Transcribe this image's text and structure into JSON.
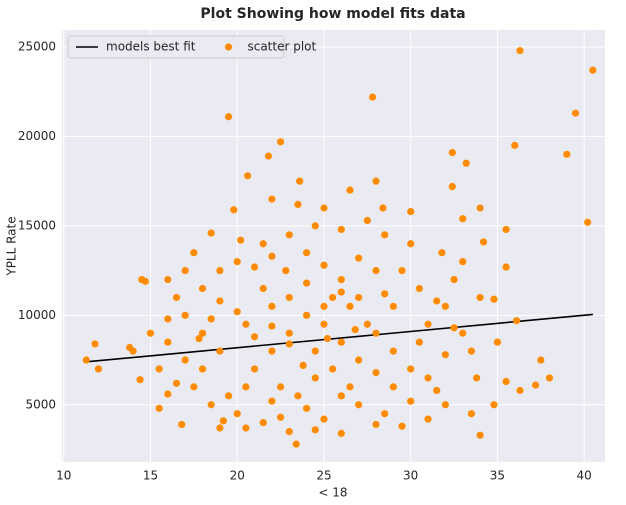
{
  "chart_data": {
    "type": "scatter",
    "title": "Plot Showing how model fits data",
    "x_label": "< 18",
    "y_label": "YPLL Rate",
    "xlim": [
      9.9,
      41.2
    ],
    "ylim": [
      1800,
      25950
    ],
    "xticks": [
      10,
      15,
      20,
      25,
      30,
      35,
      40
    ],
    "yticks": [
      5000,
      10000,
      15000,
      20000,
      25000
    ],
    "grid": true,
    "legend": "upper left",
    "series": [
      {
        "name": "models best fit",
        "type": "line",
        "color": "#000000",
        "x": [
          11.3,
          40.5
        ],
        "values": [
          7400,
          10050
        ]
      },
      {
        "name": "scatter plot",
        "type": "scatter",
        "color": "#ff8c00",
        "x": [
          36.3,
          40.5,
          27.8,
          19.5,
          39.5,
          36,
          39,
          32.4,
          22.5,
          21.8,
          33.2,
          20.6,
          32.4,
          23.6,
          34,
          33,
          40.2,
          30,
          28.4,
          19.8,
          22,
          35.5,
          34.2,
          35.5,
          34.8,
          36.1,
          37.5,
          38,
          37.2,
          36.3,
          35.5,
          34.8,
          34,
          33.5,
          23.4,
          11.3,
          11.8,
          12,
          13.8,
          14.4,
          14.5,
          14.7,
          16.8,
          19,
          15.5,
          16,
          21,
          22,
          23,
          24,
          25,
          26,
          27,
          22.5,
          23.5,
          24.5,
          25.5,
          26.5,
          20.5,
          21.5,
          22.8,
          24,
          25,
          26,
          27,
          28,
          29,
          30,
          31,
          32,
          19,
          18,
          17,
          16,
          15.5,
          17.5,
          18.5,
          20,
          21.5,
          23,
          25,
          27,
          28.5,
          30,
          31.5,
          29,
          30.5,
          31,
          32,
          33,
          33.5,
          32.5,
          31.8,
          30,
          28.5,
          27.5,
          26,
          24.5,
          23,
          21.5,
          20,
          19,
          18,
          16.5,
          17,
          16,
          15,
          14,
          20.5,
          19.5,
          18,
          17,
          16.5,
          22,
          23,
          24.5,
          25.5,
          26.5,
          27.5,
          28,
          29.5,
          22,
          24,
          26,
          28,
          29,
          21,
          23.8,
          25.2,
          26.8,
          20,
          19,
          18.5,
          17.8,
          33,
          34,
          35,
          33.8,
          32,
          31,
          29.5,
          28,
          26,
          24.5,
          22.5,
          20.5,
          19.2,
          21,
          22,
          23.5,
          25,
          27,
          28.5,
          30.5,
          31.5,
          32.5,
          16,
          17.5,
          18.5,
          20.2,
          26.5,
          28,
          24,
          25,
          23,
          22,
          26
        ],
        "values": [
          24800,
          23700,
          22200,
          21100,
          21300,
          19500,
          19000,
          19100,
          19700,
          18900,
          18500,
          17800,
          17200,
          17500,
          16000,
          15400,
          15200,
          15800,
          16000,
          15900,
          16500,
          14800,
          14100,
          12700,
          10900,
          9700,
          7500,
          6500,
          6100,
          5800,
          6300,
          5000,
          3300,
          4500,
          2800,
          7500,
          8400,
          7000,
          8200,
          6400,
          12000,
          11900,
          3900,
          3700,
          4800,
          5600,
          7000,
          8000,
          9000,
          10000,
          9500,
          8500,
          7500,
          6000,
          5500,
          6500,
          11000,
          10500,
          9500,
          11500,
          12500,
          13500,
          12800,
          12000,
          11000,
          9000,
          8000,
          7000,
          6500,
          7800,
          8000,
          9000,
          10000,
          8500,
          7000,
          6000,
          5000,
          4500,
          4000,
          3500,
          4200,
          5000,
          4500,
          5200,
          5800,
          10500,
          11500,
          9500,
          10500,
          9000,
          8000,
          12000,
          13500,
          14000,
          14500,
          15300,
          14800,
          15000,
          14500,
          14000,
          13000,
          12500,
          11500,
          11000,
          12500,
          9800,
          9000,
          8000,
          6000,
          5500,
          7000,
          7500,
          6200,
          10500,
          11000,
          8000,
          7000,
          6000,
          9500,
          12500,
          12500,
          5200,
          4800,
          5500,
          6800,
          6000,
          8800,
          7200,
          8700,
          9200,
          10200,
          10800,
          9800,
          8700,
          13000,
          11000,
          8500,
          6500,
          5000,
          4200,
          3800,
          3900,
          3400,
          3600,
          4300,
          3700,
          4100,
          12700,
          13300,
          16200,
          16000,
          13200,
          11200,
          8500,
          10800,
          9300,
          12000,
          13500,
          14600,
          14200,
          17000,
          17500,
          11800,
          10500,
          8400,
          9400,
          11300
        ]
      }
    ]
  }
}
